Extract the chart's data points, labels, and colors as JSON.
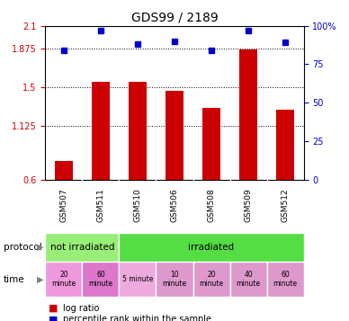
{
  "title": "GDS99 / 2189",
  "samples": [
    "GSM507",
    "GSM511",
    "GSM510",
    "GSM506",
    "GSM508",
    "GSM509",
    "GSM512"
  ],
  "log_ratio": [
    0.78,
    1.55,
    1.55,
    1.47,
    1.3,
    1.87,
    1.28
  ],
  "percentile_rank": [
    84,
    97,
    88,
    90,
    84,
    97,
    89
  ],
  "ylim_left": [
    0.6,
    2.1
  ],
  "ylim_right": [
    0,
    100
  ],
  "yticks_left": [
    0.6,
    1.125,
    1.5,
    1.875,
    2.1
  ],
  "ytick_labels_left": [
    "0.6",
    "1.125",
    "1.5",
    "1.875",
    "2.1"
  ],
  "yticks_right": [
    0,
    25,
    50,
    75,
    100
  ],
  "ytick_labels_right": [
    "0",
    "25",
    "50",
    "75",
    "100%"
  ],
  "bar_color": "#cc0000",
  "dot_color": "#0000cc",
  "grid_yticks": [
    1.125,
    1.5,
    1.875
  ],
  "proto_data": [
    [
      0,
      2,
      "#99ee77",
      "not irradiated"
    ],
    [
      2,
      7,
      "#55dd44",
      "irradiated"
    ]
  ],
  "time_labels": [
    "20\nminute",
    "60\nminute",
    "5 minute",
    "10\nminute",
    "20\nminute",
    "40\nminute",
    "60\nminute"
  ],
  "time_colors": [
    "#ee99dd",
    "#dd77cc",
    "#eeaadd",
    "#dd99cc",
    "#dd99cc",
    "#dd99cc",
    "#dd99cc"
  ],
  "bg_color": "#ffffff",
  "sample_bg": "#cccccc"
}
